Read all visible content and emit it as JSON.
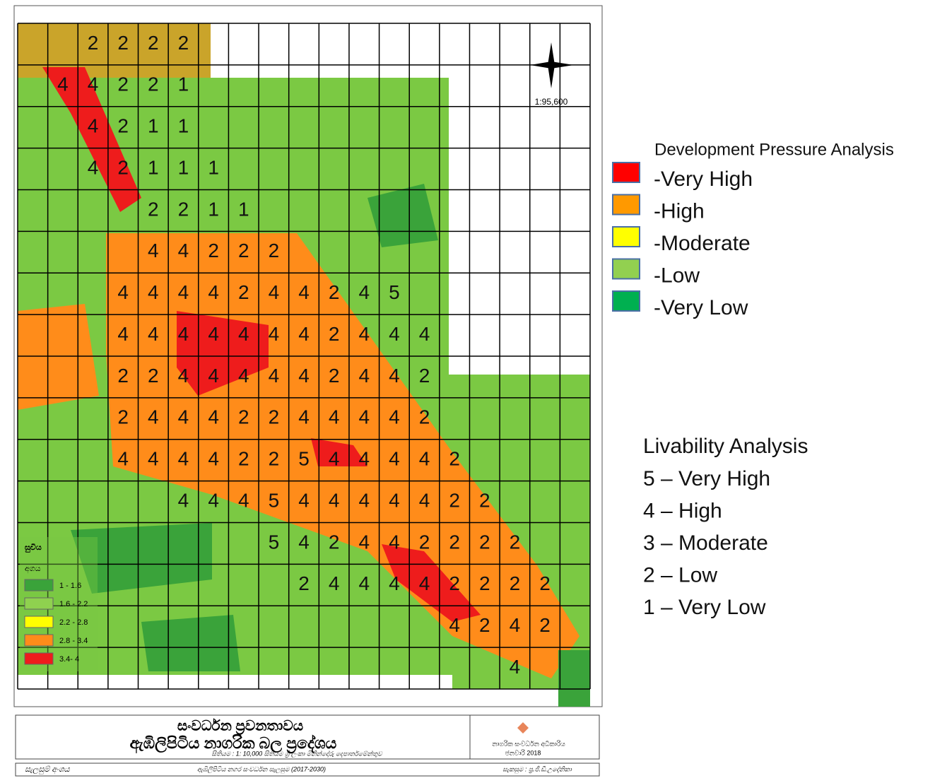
{
  "map": {
    "scale": "1:95,600",
    "grid": {
      "rows": [
        [
          null,
          null,
          2,
          2,
          2,
          2,
          null,
          null,
          null,
          null,
          null,
          null,
          null,
          null,
          null,
          null,
          null,
          null,
          null
        ],
        [
          null,
          4,
          4,
          2,
          2,
          1,
          null,
          null,
          null,
          null,
          null,
          null,
          null,
          null,
          null,
          null,
          null,
          null,
          null
        ],
        [
          null,
          null,
          4,
          2,
          1,
          1,
          null,
          null,
          null,
          null,
          null,
          null,
          null,
          null,
          null,
          null,
          null,
          null,
          null
        ],
        [
          null,
          null,
          4,
          2,
          1,
          1,
          1,
          null,
          null,
          null,
          null,
          null,
          null,
          null,
          null,
          null,
          null,
          null,
          null
        ],
        [
          null,
          null,
          null,
          null,
          2,
          2,
          1,
          1,
          null,
          null,
          null,
          null,
          null,
          null,
          null,
          null,
          null,
          null,
          null
        ],
        [
          null,
          null,
          null,
          null,
          4,
          4,
          2,
          2,
          2,
          null,
          null,
          null,
          null,
          null,
          null,
          null,
          null,
          null,
          null
        ],
        [
          null,
          null,
          null,
          4,
          4,
          4,
          4,
          2,
          4,
          4,
          2,
          4,
          5,
          null,
          null,
          null,
          null,
          null,
          null
        ],
        [
          null,
          null,
          null,
          4,
          4,
          4,
          4,
          4,
          4,
          4,
          2,
          4,
          4,
          4,
          null,
          null,
          null,
          null,
          null
        ],
        [
          null,
          null,
          null,
          2,
          2,
          4,
          4,
          4,
          4,
          4,
          2,
          4,
          4,
          2,
          null,
          null,
          null,
          null,
          null
        ],
        [
          null,
          null,
          null,
          2,
          4,
          4,
          4,
          2,
          2,
          4,
          4,
          4,
          4,
          2,
          null,
          null,
          null,
          null,
          null
        ],
        [
          null,
          null,
          null,
          4,
          4,
          4,
          4,
          2,
          2,
          5,
          4,
          4,
          4,
          4,
          2,
          null,
          null,
          null,
          null
        ],
        [
          null,
          null,
          null,
          null,
          null,
          4,
          4,
          4,
          5,
          4,
          4,
          4,
          4,
          4,
          2,
          2,
          null,
          null,
          null
        ],
        [
          null,
          null,
          null,
          null,
          null,
          null,
          null,
          null,
          5,
          4,
          2,
          4,
          4,
          2,
          2,
          2,
          2,
          null,
          null
        ],
        [
          null,
          null,
          null,
          null,
          null,
          null,
          null,
          null,
          null,
          2,
          4,
          4,
          4,
          4,
          2,
          2,
          2,
          2,
          null
        ],
        [
          null,
          null,
          null,
          null,
          null,
          null,
          null,
          null,
          null,
          null,
          null,
          null,
          null,
          null,
          4,
          2,
          4,
          2,
          null
        ],
        [
          null,
          null,
          null,
          null,
          null,
          null,
          null,
          null,
          null,
          null,
          null,
          null,
          null,
          null,
          null,
          null,
          4,
          null,
          null
        ]
      ]
    },
    "inset_legend": {
      "title": "සුචිය",
      "subtitle": "අගය",
      "items": [
        {
          "label": "1 - 1.6",
          "color": "#3aa33a"
        },
        {
          "label": "1.6 - 2.2",
          "color": "#8fd14f"
        },
        {
          "label": "2.2 - 2.8",
          "color": "#ffff00"
        },
        {
          "label": "2.8 - 3.4",
          "color": "#ff8c1a"
        },
        {
          "label": "3.4- 4",
          "color": "#ee1c1c"
        }
      ]
    }
  },
  "pressure_legend": {
    "title": "Development Pressure Analysis",
    "items": [
      {
        "label": "-Very High",
        "color": "#ff0000"
      },
      {
        "label": "-High",
        "color": "#ff9900"
      },
      {
        "label": "-Moderate",
        "color": "#ffff00"
      },
      {
        "label": "-Low",
        "color": "#92d050"
      },
      {
        "label": "-Very Low",
        "color": "#00b050"
      }
    ]
  },
  "livability_legend": {
    "title": "Livability Analysis",
    "items": [
      "5 – Very High",
      "4 – High",
      "3 – Moderate",
      "2 – Low",
      "1 – Very Low"
    ]
  },
  "title_block": {
    "title": "සංවර්ධන ප්‍රවනතාවය",
    "subtitle": "ඇඹිලිපිටිය නාගරික බල ප්‍රදේශය",
    "source": "සිතියම : 1: 10,000 සිතියම ශ්‍රී ලංකා මිනින්දෝරු දෙපාර්තමේන්තුව",
    "agency": "නාගරික සංවර්ධන අධිකාරිය",
    "date": "ජනවාරි 2018"
  },
  "footer": {
    "left": "සැලසුම් අංශය",
    "center": "ඇඹිලිපිටිය නගර සංවර්ධන සැලසුම (2017-2030)",
    "right": "සැකසුම : ප්‍ර.ජී.ඩී.උදේනිකා"
  }
}
